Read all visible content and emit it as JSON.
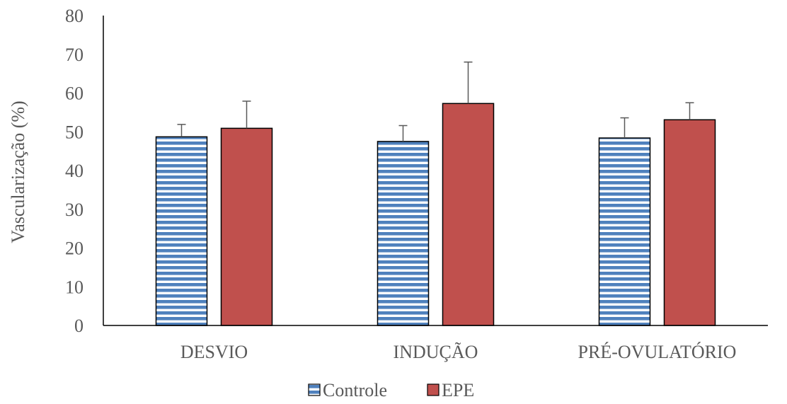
{
  "chart_data": {
    "type": "bar",
    "title": "",
    "xlabel": "",
    "ylabel": "Vascularização (%)",
    "ylim": [
      0,
      80
    ],
    "yticks": [
      0,
      10,
      20,
      30,
      40,
      50,
      60,
      70,
      80
    ],
    "grid": false,
    "legend_position": "bottom",
    "categories": [
      "DESVIO",
      "INDUÇÃO",
      "PRÉ-OVULATÓRIO"
    ],
    "series": [
      {
        "name": "Controle",
        "values": [
          48.7,
          47.5,
          48.4
        ],
        "error": [
          3.2,
          4.1,
          5.2
        ],
        "color": "#4F81BD",
        "pattern": "horizontal-stripes"
      },
      {
        "name": "EPE",
        "values": [
          50.9,
          57.3,
          53.1
        ],
        "error": [
          7.0,
          10.7,
          4.4
        ],
        "color": "#C0504D",
        "pattern": "solid"
      }
    ]
  }
}
